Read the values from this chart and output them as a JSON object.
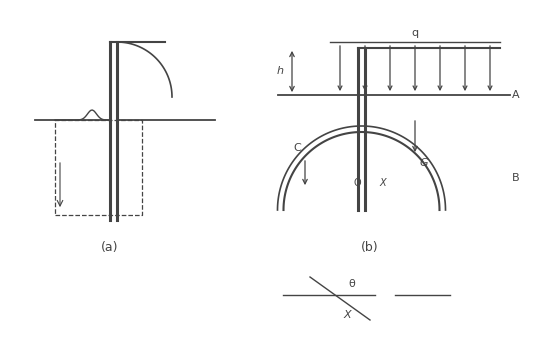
{
  "bg_color": "#ffffff",
  "line_color": "#444444",
  "label_a": "A",
  "label_b": "B",
  "label_c": "C",
  "label_o": "O",
  "label_x": "X",
  "label_g": "G",
  "label_h": "h",
  "label_q": "q",
  "label_theta": "θ",
  "label_x2": "X",
  "label_a_fig": "(a)",
  "label_b_fig": "(b)",
  "font_size": 8
}
